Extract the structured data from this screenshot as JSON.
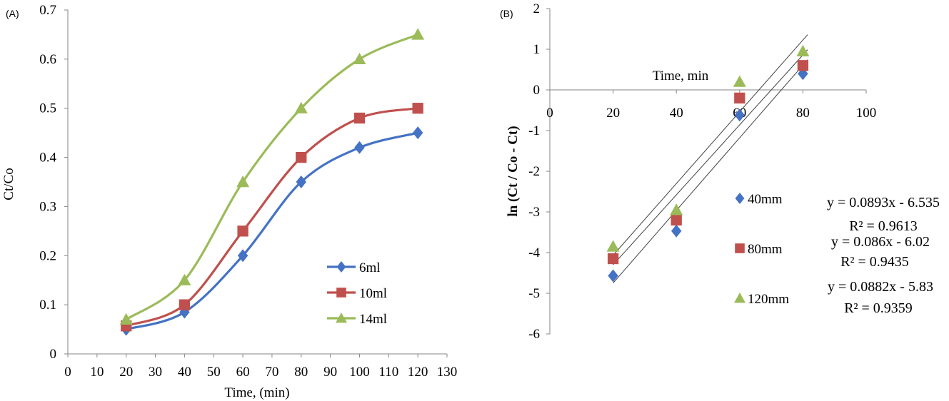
{
  "chart_data": [
    {
      "type": "line",
      "panel_label": "(A)",
      "xlabel": "Time, (min)",
      "ylabel": "Ct/Co",
      "xlim": [
        0,
        130
      ],
      "ylim": [
        0,
        0.7
      ],
      "xticks": [
        "0",
        "10",
        "20",
        "30",
        "40",
        "50",
        "60",
        "70",
        "80",
        "90",
        "100",
        "110",
        "120",
        "130"
      ],
      "yticks": [
        "0",
        "0.1",
        "0.2",
        "0.3",
        "0.4",
        "0.5",
        "0.6",
        "0.7"
      ],
      "grid": false,
      "legend_position": "right",
      "x": [
        20,
        40,
        60,
        80,
        100,
        120
      ],
      "series": [
        {
          "name": "6ml",
          "marker": "diamond",
          "color": "#4472c4",
          "values": [
            0.05,
            0.085,
            0.2,
            0.35,
            0.42,
            0.45
          ]
        },
        {
          "name": "10ml",
          "marker": "square",
          "color": "#c0504d",
          "values": [
            0.057,
            0.1,
            0.25,
            0.4,
            0.48,
            0.5
          ]
        },
        {
          "name": "14ml",
          "marker": "triangle",
          "color": "#9bbb59",
          "values": [
            0.07,
            0.15,
            0.35,
            0.5,
            0.6,
            0.65
          ]
        }
      ]
    },
    {
      "type": "scatter",
      "panel_label": "(B)",
      "xlabel": "Time, min",
      "ylabel": "ln (Ct / Co - Ct)",
      "xlim": [
        0,
        100
      ],
      "ylim": [
        -6,
        2
      ],
      "xticks": [
        "0",
        "20",
        "40",
        "60",
        "80",
        "100"
      ],
      "yticks": [
        "2",
        "1",
        "0",
        "-1",
        "-2",
        "-3",
        "-4",
        "-5",
        "-6"
      ],
      "grid": false,
      "legend_position": "right",
      "trendline_color": "#404040",
      "series": [
        {
          "name": "40mm",
          "marker": "diamond",
          "color": "#4472c4",
          "x": [
            20,
            40,
            60,
            80
          ],
          "y": [
            -4.57,
            -3.47,
            -0.62,
            0.4
          ],
          "fit": {
            "slope": 0.0893,
            "intercept": -6.535,
            "equation": "y = 0.0893x - 6.535",
            "r2": "R² = 0.9613"
          }
        },
        {
          "name": "80mm",
          "marker": "square",
          "color": "#c0504d",
          "x": [
            20,
            40,
            60,
            80
          ],
          "y": [
            -4.15,
            -3.2,
            -0.2,
            0.6
          ],
          "fit": {
            "slope": 0.086,
            "intercept": -6.02,
            "equation": "y = 0.086x - 6.02",
            "r2": "R² = 0.9435"
          }
        },
        {
          "name": "120mm",
          "marker": "triangle",
          "color": "#9bbb59",
          "x": [
            20,
            40,
            60,
            80
          ],
          "y": [
            -3.85,
            -2.95,
            0.2,
            0.95
          ],
          "fit": {
            "slope": 0.0882,
            "intercept": -5.83,
            "equation": "y = 0.0882x - 5.83",
            "r2": "R² = 0.9359"
          }
        }
      ]
    }
  ]
}
